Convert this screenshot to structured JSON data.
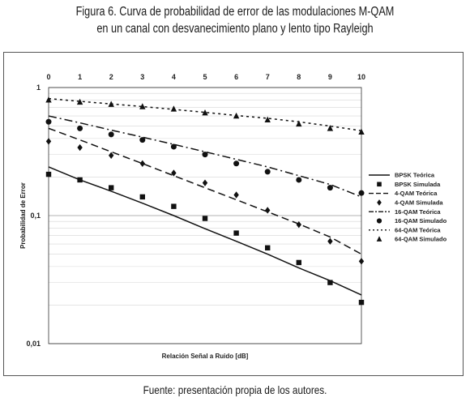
{
  "figure": {
    "title_line1": "Figura 6. Curva de probabilidad de error de las modulaciones M-QAM",
    "title_line2": "en un canal con desvanecimiento plano y lento tipo Rayleigh",
    "source": "Fuente: presentación propia de los autores."
  },
  "chart_data": {
    "type": "line",
    "xlabel": "Relación Señal a Ruido [dB]",
    "ylabel": "Probabilidad de Error",
    "x": [
      0,
      1,
      2,
      3,
      4,
      5,
      6,
      7,
      8,
      9,
      10
    ],
    "x_tick_labels": [
      "0",
      "1",
      "2",
      "3",
      "4",
      "5",
      "6",
      "7",
      "8",
      "9",
      "10"
    ],
    "xlim": [
      0,
      10
    ],
    "x_axis_position": "top",
    "yscale": "log",
    "ylim": [
      0.01,
      1
    ],
    "y_ticks": [
      1,
      0.1,
      0.01
    ],
    "y_tick_labels": [
      "1",
      "0,1",
      "0,01"
    ],
    "grid": true,
    "legend_position": "right",
    "series": [
      {
        "name": "BPSK Teórica",
        "kind": "line",
        "dash": "solid",
        "color": "#111111",
        "values": [
          0.24,
          0.19,
          0.155,
          0.125,
          0.1,
          0.079,
          0.063,
          0.05,
          0.039,
          0.031,
          0.024
        ]
      },
      {
        "name": "BPSK Simulada",
        "kind": "marker",
        "marker": "square",
        "color": "#111111",
        "values": [
          0.21,
          0.19,
          0.165,
          0.14,
          0.118,
          0.095,
          0.073,
          0.056,
          0.043,
          0.03,
          0.021
        ]
      },
      {
        "name": "4-QAM Teórica",
        "kind": "line",
        "dash": "dash",
        "color": "#111111",
        "values": [
          0.48,
          0.39,
          0.315,
          0.255,
          0.205,
          0.165,
          0.133,
          0.107,
          0.086,
          0.068,
          0.05
        ]
      },
      {
        "name": "4-QAM Simulada",
        "kind": "marker",
        "marker": "diamond",
        "color": "#111111",
        "values": [
          0.38,
          0.34,
          0.295,
          0.255,
          0.215,
          0.18,
          0.145,
          0.11,
          0.085,
          0.063,
          0.044
        ]
      },
      {
        "name": "16-QAM Teórica",
        "kind": "line",
        "dash": "dashdot",
        "color": "#111111",
        "values": [
          0.6,
          0.53,
          0.465,
          0.41,
          0.36,
          0.315,
          0.275,
          0.24,
          0.205,
          0.175,
          0.14
        ]
      },
      {
        "name": "16-QAM Simulado",
        "kind": "marker",
        "marker": "circle",
        "color": "#111111",
        "values": [
          0.54,
          0.48,
          0.43,
          0.39,
          0.345,
          0.3,
          0.255,
          0.22,
          0.19,
          0.165,
          0.15
        ]
      },
      {
        "name": "64-QAM Teórica",
        "kind": "line",
        "dash": "dot",
        "color": "#111111",
        "values": [
          0.82,
          0.78,
          0.745,
          0.71,
          0.675,
          0.64,
          0.605,
          0.575,
          0.54,
          0.5,
          0.46
        ]
      },
      {
        "name": "64-QAM Simulado",
        "kind": "marker",
        "marker": "triangle",
        "color": "#111111",
        "values": [
          0.8,
          0.77,
          0.74,
          0.71,
          0.68,
          0.635,
          0.6,
          0.56,
          0.52,
          0.48,
          0.45
        ]
      }
    ]
  }
}
